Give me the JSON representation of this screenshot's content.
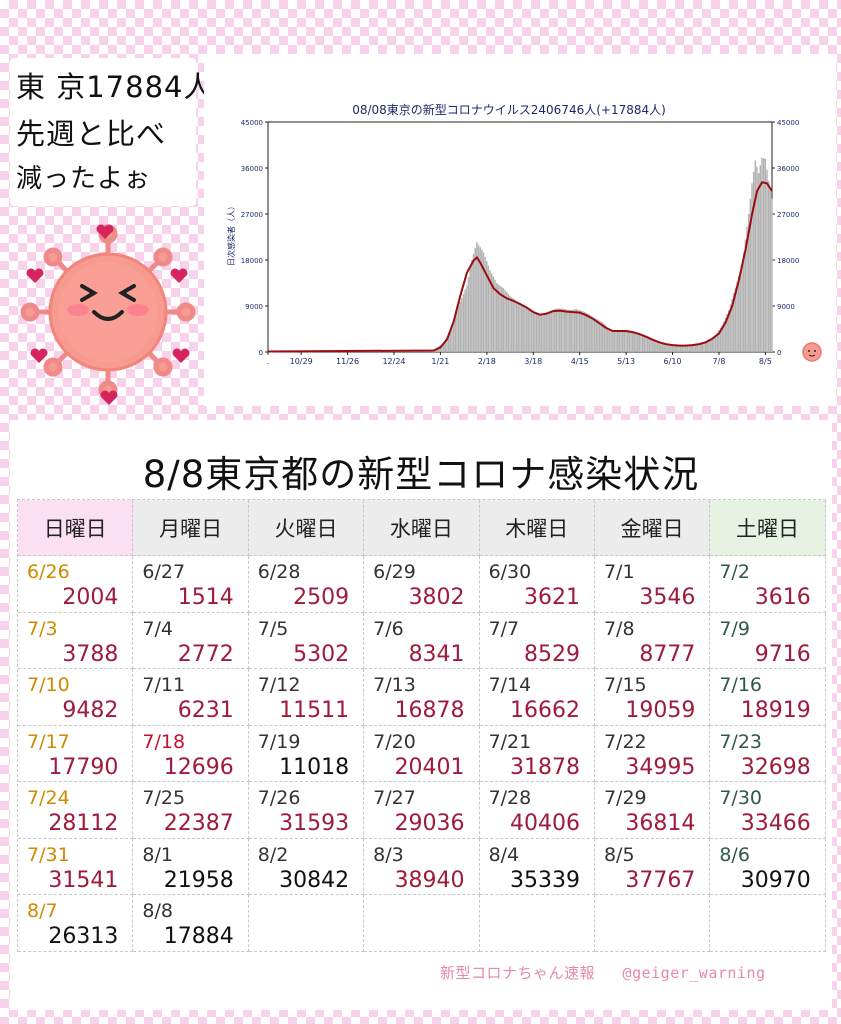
{
  "speech": {
    "line1": "東 京17884人",
    "line2": "先週と比べ",
    "line3": "減ったよぉ"
  },
  "chart_data": {
    "type": "bar",
    "title": "08/08東京の新型コロナウイルス2406746人(+17884人)",
    "ylabel": "日次感染者（人）",
    "ylim": [
      0,
      45000
    ],
    "yticks": [
      0,
      9000,
      18000,
      27000,
      36000,
      45000
    ],
    "xtick_labels": [
      ".",
      "10/29",
      "11/26",
      "12/24",
      "1/21",
      "2/18",
      "3/18",
      "4/15",
      "5/13",
      "6/10",
      "7/8",
      "8/5"
    ],
    "xtick_day_index": [
      0,
      20,
      48,
      76,
      104,
      132,
      160,
      188,
      216,
      244,
      272,
      300
    ],
    "days": 305,
    "bar_color": "#b3b3b3",
    "line_color": "#9b0d14",
    "series": [
      {
        "kind": "daily",
        "points": [
          [
            0,
            100
          ],
          [
            95,
            200
          ],
          [
            100,
            500
          ],
          [
            105,
            1500
          ],
          [
            110,
            4000
          ],
          [
            115,
            9000
          ],
          [
            120,
            13000
          ],
          [
            123,
            18000
          ],
          [
            126,
            21500
          ],
          [
            130,
            19500
          ],
          [
            134,
            16000
          ],
          [
            138,
            13500
          ],
          [
            142,
            12500
          ],
          [
            146,
            11000
          ],
          [
            150,
            10000
          ],
          [
            154,
            9000
          ],
          [
            158,
            8200
          ],
          [
            162,
            7500
          ],
          [
            166,
            7500
          ],
          [
            170,
            8000
          ],
          [
            174,
            8500
          ],
          [
            178,
            8500
          ],
          [
            182,
            8200
          ],
          [
            186,
            8400
          ],
          [
            190,
            8000
          ],
          [
            194,
            7300
          ],
          [
            198,
            6500
          ],
          [
            202,
            5800
          ],
          [
            206,
            4500
          ],
          [
            210,
            4000
          ],
          [
            214,
            4200
          ],
          [
            218,
            4200
          ],
          [
            222,
            3800
          ],
          [
            226,
            3300
          ],
          [
            230,
            2700
          ],
          [
            234,
            2200
          ],
          [
            238,
            1800
          ],
          [
            242,
            1600
          ],
          [
            246,
            1500
          ],
          [
            250,
            1400
          ],
          [
            254,
            1400
          ],
          [
            258,
            1500
          ],
          [
            262,
            1800
          ],
          [
            266,
            2300
          ],
          [
            270,
            3300
          ],
          [
            274,
            5200
          ],
          [
            278,
            8200
          ],
          [
            282,
            12600
          ],
          [
            286,
            17000
          ],
          [
            290,
            27000
          ],
          [
            292,
            33000
          ],
          [
            294,
            37500
          ],
          [
            296,
            35000
          ],
          [
            298,
            38000
          ],
          [
            300,
            37800
          ],
          [
            302,
            33500
          ],
          [
            304,
            30000
          ]
        ]
      },
      {
        "kind": "7-day average",
        "points": [
          [
            0,
            100
          ],
          [
            100,
            300
          ],
          [
            104,
            900
          ],
          [
            108,
            2500
          ],
          [
            112,
            6000
          ],
          [
            116,
            11000
          ],
          [
            120,
            15500
          ],
          [
            124,
            17900
          ],
          [
            126,
            18500
          ],
          [
            128,
            17500
          ],
          [
            132,
            15000
          ],
          [
            136,
            12500
          ],
          [
            140,
            11300
          ],
          [
            144,
            10500
          ],
          [
            148,
            10000
          ],
          [
            152,
            9400
          ],
          [
            156,
            8700
          ],
          [
            160,
            7800
          ],
          [
            164,
            7300
          ],
          [
            168,
            7500
          ],
          [
            172,
            8000
          ],
          [
            176,
            8100
          ],
          [
            180,
            7900
          ],
          [
            184,
            7800
          ],
          [
            188,
            7700
          ],
          [
            192,
            7200
          ],
          [
            196,
            6500
          ],
          [
            200,
            5600
          ],
          [
            204,
            4700
          ],
          [
            208,
            4100
          ],
          [
            212,
            4100
          ],
          [
            216,
            4100
          ],
          [
            220,
            3900
          ],
          [
            224,
            3500
          ],
          [
            228,
            3000
          ],
          [
            232,
            2400
          ],
          [
            236,
            1900
          ],
          [
            240,
            1550
          ],
          [
            244,
            1350
          ],
          [
            248,
            1250
          ],
          [
            252,
            1250
          ],
          [
            256,
            1350
          ],
          [
            260,
            1550
          ],
          [
            264,
            1900
          ],
          [
            268,
            2600
          ],
          [
            272,
            3600
          ],
          [
            276,
            5800
          ],
          [
            280,
            9000
          ],
          [
            284,
            14000
          ],
          [
            288,
            20000
          ],
          [
            292,
            27000
          ],
          [
            295,
            31500
          ],
          [
            298,
            33200
          ],
          [
            301,
            33000
          ],
          [
            304,
            31500
          ]
        ]
      }
    ]
  },
  "table": {
    "title": "8/8東京都の新型コロナ感染状況",
    "headers": [
      "日曜日",
      "月曜日",
      "火曜日",
      "水曜日",
      "木曜日",
      "金曜日",
      "土曜日"
    ],
    "rows": [
      [
        {
          "d": "6/26",
          "v": "2004"
        },
        {
          "d": "6/27",
          "v": "1514"
        },
        {
          "d": "6/28",
          "v": "2509"
        },
        {
          "d": "6/29",
          "v": "3802"
        },
        {
          "d": "6/30",
          "v": "3621"
        },
        {
          "d": "7/1",
          "v": "3546"
        },
        {
          "d": "7/2",
          "v": "3616"
        }
      ],
      [
        {
          "d": "7/3",
          "v": "3788"
        },
        {
          "d": "7/4",
          "v": "2772"
        },
        {
          "d": "7/5",
          "v": "5302"
        },
        {
          "d": "7/6",
          "v": "8341"
        },
        {
          "d": "7/7",
          "v": "8529"
        },
        {
          "d": "7/8",
          "v": "8777"
        },
        {
          "d": "7/9",
          "v": "9716"
        }
      ],
      [
        {
          "d": "7/10",
          "v": "9482"
        },
        {
          "d": "7/11",
          "v": "6231"
        },
        {
          "d": "7/12",
          "v": "11511"
        },
        {
          "d": "7/13",
          "v": "16878"
        },
        {
          "d": "7/14",
          "v": "16662"
        },
        {
          "d": "7/15",
          "v": "19059"
        },
        {
          "d": "7/16",
          "v": "18919"
        }
      ],
      [
        {
          "d": "7/17",
          "v": "17790"
        },
        {
          "d": "7/18",
          "v": "12696"
        },
        {
          "d": "7/19",
          "v": "11018"
        },
        {
          "d": "7/20",
          "v": "20401"
        },
        {
          "d": "7/21",
          "v": "31878"
        },
        {
          "d": "7/22",
          "v": "34995"
        },
        {
          "d": "7/23",
          "v": "32698"
        }
      ],
      [
        {
          "d": "7/24",
          "v": "28112"
        },
        {
          "d": "7/25",
          "v": "22387"
        },
        {
          "d": "7/26",
          "v": "31593"
        },
        {
          "d": "7/27",
          "v": "29036"
        },
        {
          "d": "7/28",
          "v": "40406"
        },
        {
          "d": "7/29",
          "v": "36814"
        },
        {
          "d": "7/30",
          "v": "33466"
        }
      ],
      [
        {
          "d": "7/31",
          "v": "31541"
        },
        {
          "d": "8/1",
          "v": "21958"
        },
        {
          "d": "8/2",
          "v": "30842"
        },
        {
          "d": "8/3",
          "v": "38940"
        },
        {
          "d": "8/4",
          "v": "35339"
        },
        {
          "d": "8/5",
          "v": "37767"
        },
        {
          "d": "8/6",
          "v": "30970"
        }
      ],
      [
        {
          "d": "8/7",
          "v": "26313"
        },
        {
          "d": "8/8",
          "v": "17884"
        },
        {
          "d": "",
          "v": ""
        },
        {
          "d": "",
          "v": ""
        },
        {
          "d": "",
          "v": ""
        },
        {
          "d": "",
          "v": ""
        },
        {
          "d": "",
          "v": ""
        }
      ]
    ],
    "black_values": [
      "11018",
      "21958",
      "30842",
      "35339",
      "30970",
      "26313",
      "17884"
    ],
    "holiday_dates": [
      "7/18"
    ]
  },
  "footer": {
    "source": "新型コロナちゃん速報",
    "handle": "@geiger_warning"
  },
  "colors": {
    "count_red": "#9e1b3c",
    "sunday_date": "#d08a00",
    "saturday_date": "#2e5a48",
    "holiday_date": "#c8102e",
    "sunday_header": "#fbe0f2",
    "saturday_header": "#e6f3e2",
    "pink_background": "#f7d2ea"
  },
  "icons": [
    "virus-mascot-icon",
    "heart-icon",
    "small-virus-icon"
  ]
}
